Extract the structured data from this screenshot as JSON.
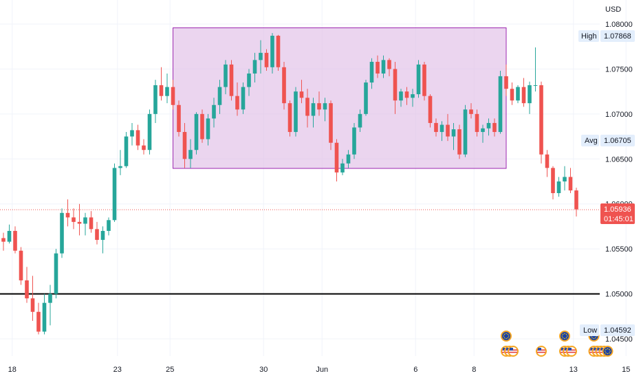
{
  "currency": "USD",
  "chart_data": {
    "type": "candlestick",
    "instrument_currency": "USD",
    "y_ticks": [
      "1.08000",
      "1.07500",
      "1.07000",
      "1.06500",
      "1.06000",
      "1.05500",
      "1.05000",
      "1.04500"
    ],
    "y_tick_values": [
      1.08,
      1.075,
      1.07,
      1.065,
      1.06,
      1.055,
      1.05,
      1.045
    ],
    "ylim": [
      1.04365,
      1.0825
    ],
    "x_ticks": [
      {
        "label": "18",
        "bar": 1.5
      },
      {
        "label": "23",
        "bar": 19.5
      },
      {
        "label": "25",
        "bar": 28.5
      },
      {
        "label": "30",
        "bar": 44.5
      },
      {
        "label": "Jun",
        "bar": 54.5
      },
      {
        "label": "6",
        "bar": 70.5
      },
      {
        "label": "8",
        "bar": 80.5
      },
      {
        "label": "13",
        "bar": 97.5
      },
      {
        "label": "15",
        "bar": 106.5
      }
    ],
    "bullish_color": "#26a69a",
    "bearish_color": "#ef5350",
    "candles": [
      [
        1.0562,
        1.0568,
        1.0548,
        1.0558
      ],
      [
        1.0558,
        1.0577,
        1.0556,
        1.057
      ],
      [
        1.057,
        1.0575,
        1.0545,
        1.0548
      ],
      [
        1.0548,
        1.0552,
        1.051,
        1.0515
      ],
      [
        1.0515,
        1.053,
        1.049,
        1.0495
      ],
      [
        1.0495,
        1.052,
        1.047,
        1.048
      ],
      [
        1.048,
        1.049,
        1.0455,
        1.0458
      ],
      [
        1.0458,
        1.05,
        1.0455,
        1.049
      ],
      [
        1.049,
        1.051,
        1.0465,
        1.05
      ],
      [
        1.05,
        1.055,
        1.0495,
        1.0545
      ],
      [
        1.0545,
        1.0595,
        1.054,
        1.059
      ],
      [
        1.059,
        1.0605,
        1.0575,
        1.0585
      ],
      [
        1.0585,
        1.0595,
        1.0572,
        1.058
      ],
      [
        1.058,
        1.06,
        1.0565,
        1.0578
      ],
      [
        1.0578,
        1.059,
        1.0565,
        1.0585
      ],
      [
        1.0585,
        1.0592,
        1.0568,
        1.0572
      ],
      [
        1.0572,
        1.058,
        1.0555,
        1.056
      ],
      [
        1.056,
        1.0575,
        1.0545,
        1.057
      ],
      [
        1.057,
        1.0585,
        1.0565,
        1.0582
      ],
      [
        1.0582,
        1.0645,
        1.058,
        1.064
      ],
      [
        1.064,
        1.066,
        1.0632,
        1.0642
      ],
      [
        1.0642,
        1.068,
        1.064,
        1.0675
      ],
      [
        1.0675,
        1.069,
        1.0665,
        1.0682
      ],
      [
        1.0682,
        1.0688,
        1.066,
        1.0665
      ],
      [
        1.0665,
        1.0672,
        1.0655,
        1.066
      ],
      [
        1.066,
        1.0705,
        1.0655,
        1.07
      ],
      [
        1.07,
        1.0738,
        1.069,
        1.0732
      ],
      [
        1.0732,
        1.0752,
        1.0715,
        1.072
      ],
      [
        1.072,
        1.0745,
        1.0712,
        1.073
      ],
      [
        1.073,
        1.0738,
        1.0705,
        1.071
      ],
      [
        1.071,
        1.0715,
        1.0675,
        1.068
      ],
      [
        1.068,
        1.069,
        1.064,
        1.065
      ],
      [
        1.065,
        1.0672,
        1.064,
        1.066
      ],
      [
        1.066,
        1.0702,
        1.0655,
        1.07
      ],
      [
        1.07,
        1.0705,
        1.0668,
        1.0672
      ],
      [
        1.0672,
        1.07,
        1.0665,
        1.0695
      ],
      [
        1.0695,
        1.0718,
        1.0685,
        1.071
      ],
      [
        1.071,
        1.0738,
        1.07,
        1.073
      ],
      [
        1.073,
        1.076,
        1.0722,
        1.0755
      ],
      [
        1.0755,
        1.076,
        1.0715,
        1.072
      ],
      [
        1.072,
        1.0735,
        1.0698,
        1.0705
      ],
      [
        1.0705,
        1.0735,
        1.07,
        1.073
      ],
      [
        1.073,
        1.075,
        1.072,
        1.0745
      ],
      [
        1.0745,
        1.0768,
        1.0735,
        1.076
      ],
      [
        1.076,
        1.0782,
        1.0745,
        1.0768
      ],
      [
        1.0768,
        1.0772,
        1.0748,
        1.0752
      ],
      [
        1.0752,
        1.079,
        1.0745,
        1.0787
      ],
      [
        1.0787,
        1.0788,
        1.0748,
        1.0752
      ],
      [
        1.0752,
        1.0758,
        1.0705,
        1.0712
      ],
      [
        1.0712,
        1.0715,
        1.0675,
        1.068
      ],
      [
        1.068,
        1.073,
        1.0675,
        1.0725
      ],
      [
        1.0725,
        1.0738,
        1.0712,
        1.0718
      ],
      [
        1.0718,
        1.0728,
        1.0685,
        1.0698
      ],
      [
        1.0698,
        1.0718,
        1.0685,
        1.0712
      ],
      [
        1.0712,
        1.0725,
        1.0698,
        1.0705
      ],
      [
        1.0705,
        1.0718,
        1.0692,
        1.0712
      ],
      [
        1.0712,
        1.0715,
        1.066,
        1.0668
      ],
      [
        1.0668,
        1.0672,
        1.0625,
        1.0635
      ],
      [
        1.0635,
        1.065,
        1.0632,
        1.0645
      ],
      [
        1.0645,
        1.066,
        1.064,
        1.0655
      ],
      [
        1.0655,
        1.069,
        1.065,
        1.0685
      ],
      [
        1.0685,
        1.0705,
        1.068,
        1.07
      ],
      [
        1.07,
        1.0738,
        1.0698,
        1.0735
      ],
      [
        1.0735,
        1.0762,
        1.0728,
        1.0758
      ],
      [
        1.0758,
        1.0765,
        1.074,
        1.0745
      ],
      [
        1.0745,
        1.0765,
        1.074,
        1.076
      ],
      [
        1.076,
        1.0762,
        1.0742,
        1.075
      ],
      [
        1.075,
        1.0758,
        1.07,
        1.0715
      ],
      [
        1.0715,
        1.0728,
        1.0708,
        1.0725
      ],
      [
        1.0725,
        1.073,
        1.071,
        1.0718
      ],
      [
        1.0718,
        1.0728,
        1.0708,
        1.0722
      ],
      [
        1.0722,
        1.076,
        1.0718,
        1.0755
      ],
      [
        1.0755,
        1.0758,
        1.0715,
        1.072
      ],
      [
        1.072,
        1.0722,
        1.0685,
        1.069
      ],
      [
        1.069,
        1.0695,
        1.0675,
        1.068
      ],
      [
        1.068,
        1.0692,
        1.067,
        1.0688
      ],
      [
        1.0688,
        1.07,
        1.067,
        1.0675
      ],
      [
        1.0675,
        1.069,
        1.066,
        1.0683
      ],
      [
        1.0683,
        1.0688,
        1.065,
        1.0655
      ],
      [
        1.0655,
        1.071,
        1.0652,
        1.0705
      ],
      [
        1.0705,
        1.0712,
        1.0695,
        1.07
      ],
      [
        1.07,
        1.0705,
        1.0675,
        1.068
      ],
      [
        1.068,
        1.0688,
        1.0668,
        1.0684
      ],
      [
        1.0684,
        1.0695,
        1.0676,
        1.069
      ],
      [
        1.069,
        1.0695,
        1.0675,
        1.068
      ],
      [
        1.068,
        1.0748,
        1.0678,
        1.0742
      ],
      [
        1.0742,
        1.0755,
        1.072,
        1.0728
      ],
      [
        1.0728,
        1.0735,
        1.071,
        1.0715
      ],
      [
        1.0715,
        1.0732,
        1.0712,
        1.073
      ],
      [
        1.073,
        1.074,
        1.0708,
        1.0712
      ],
      [
        1.0712,
        1.0736,
        1.07,
        1.0732
      ],
      [
        1.0732,
        1.0774,
        1.0725,
        1.0732
      ],
      [
        1.0732,
        1.0736,
        1.0645,
        1.0655
      ],
      [
        1.0655,
        1.066,
        1.063,
        1.064
      ],
      [
        1.064,
        1.0642,
        1.0605,
        1.0612
      ],
      [
        1.0612,
        1.063,
        1.0608,
        1.0625
      ],
      [
        1.0625,
        1.0642,
        1.0615,
        1.063
      ],
      [
        1.063,
        1.064,
        1.0612,
        1.0615
      ],
      [
        1.0615,
        1.0618,
        1.0586,
        1.0594
      ]
    ],
    "box": {
      "x_start_bar": 29,
      "x_end_bar": 86,
      "y_top": 1.07958,
      "y_bottom": 1.06395
    },
    "support_line": 1.05,
    "current_price_line": 1.05936
  },
  "tags": {
    "high": {
      "label": "High",
      "value": "1.07868"
    },
    "avg": {
      "label": "Avg",
      "value": "1.06705"
    },
    "low": {
      "label": "Low",
      "value": "1.04592"
    },
    "current": {
      "value": "1.05936",
      "countdown": "01:45:01"
    }
  },
  "events": [
    {
      "bar": 86,
      "flags": [
        "eu"
      ]
    },
    {
      "bar": 86,
      "flags": [
        "us",
        "us",
        "us"
      ]
    },
    {
      "bar": 92,
      "flags": [
        "us"
      ]
    },
    {
      "bar": 96,
      "flags": [
        "eu"
      ]
    },
    {
      "bar": 96,
      "flags": [
        "us",
        "us",
        "us"
      ]
    },
    {
      "bar": 101,
      "flags": [
        "eu"
      ]
    },
    {
      "bar": 101,
      "flags": [
        "us",
        "us",
        "us",
        "us",
        "eu"
      ]
    }
  ],
  "colors": {
    "axis_text": "#131722",
    "box_fill": "#e1bee7",
    "box_stroke": "#9c27b0",
    "support": "#000000",
    "current": "#ef5350",
    "tag_bg": "#e3eefc"
  }
}
